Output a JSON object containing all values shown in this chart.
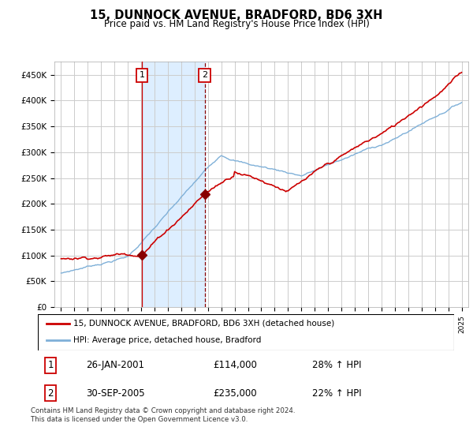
{
  "title": "15, DUNNOCK AVENUE, BRADFORD, BD6 3XH",
  "subtitle": "Price paid vs. HM Land Registry's House Price Index (HPI)",
  "ylabel_ticks": [
    "£0",
    "£50K",
    "£100K",
    "£150K",
    "£200K",
    "£250K",
    "£300K",
    "£350K",
    "£400K",
    "£450K"
  ],
  "ylim": [
    0,
    475000
  ],
  "yticks": [
    0,
    50000,
    100000,
    150000,
    200000,
    250000,
    300000,
    350000,
    400000,
    450000
  ],
  "x_start_year": 1995,
  "x_end_year": 2025,
  "sale1_date": 2001.07,
  "sale1_label": "1",
  "sale1_price": 114000,
  "sale2_date": 2005.75,
  "sale2_label": "2",
  "sale2_price": 235000,
  "red_line_color": "#cc0000",
  "blue_line_color": "#7fb0d8",
  "shade_color": "#ddeeff",
  "grid_color": "#cccccc",
  "footnote": "Contains HM Land Registry data © Crown copyright and database right 2024.\nThis data is licensed under the Open Government Licence v3.0.",
  "legend_line1": "15, DUNNOCK AVENUE, BRADFORD, BD6 3XH (detached house)",
  "legend_line2": "HPI: Average price, detached house, Bradford",
  "table_row1": [
    "1",
    "26-JAN-2001",
    "£114,000",
    "28% ↑ HPI"
  ],
  "table_row2": [
    "2",
    "30-SEP-2005",
    "£235,000",
    "22% ↑ HPI"
  ]
}
